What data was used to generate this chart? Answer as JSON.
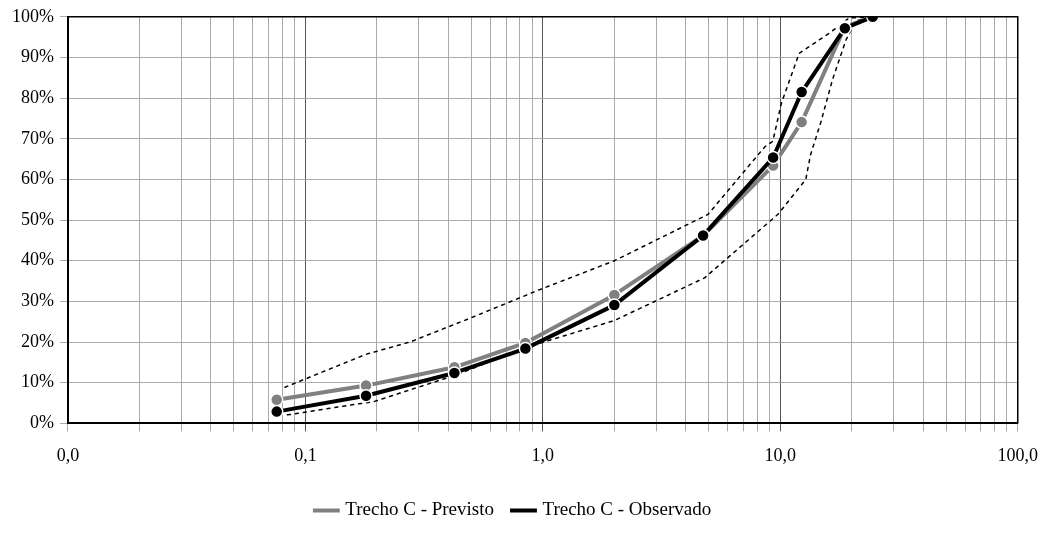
{
  "chart_data": {
    "type": "line",
    "log": "x",
    "grid": true,
    "legend": "bottom",
    "marker": "circle",
    "xlim": [
      0.01,
      100
    ],
    "ylim": [
      0,
      100
    ],
    "xticks": [
      {
        "value": 0.01,
        "label": "0,0"
      },
      {
        "value": 0.02,
        "label": null
      },
      {
        "value": 0.03,
        "label": null
      },
      {
        "value": 0.04,
        "label": null
      },
      {
        "value": 0.05,
        "label": null
      },
      {
        "value": 0.06,
        "label": null
      },
      {
        "value": 0.07,
        "label": null
      },
      {
        "value": 0.08,
        "label": null
      },
      {
        "value": 0.09,
        "label": null
      },
      {
        "value": 0.1,
        "label": "0,1"
      },
      {
        "value": 0.2,
        "label": null
      },
      {
        "value": 0.3,
        "label": null
      },
      {
        "value": 0.4,
        "label": null
      },
      {
        "value": 0.5,
        "label": null
      },
      {
        "value": 0.6,
        "label": null
      },
      {
        "value": 0.7,
        "label": null
      },
      {
        "value": 0.8,
        "label": null
      },
      {
        "value": 0.9,
        "label": null
      },
      {
        "value": 1,
        "label": "1,0"
      },
      {
        "value": 2,
        "label": null
      },
      {
        "value": 3,
        "label": null
      },
      {
        "value": 4,
        "label": null
      },
      {
        "value": 5,
        "label": null
      },
      {
        "value": 6,
        "label": null
      },
      {
        "value": 7,
        "label": null
      },
      {
        "value": 8,
        "label": null
      },
      {
        "value": 9,
        "label": null
      },
      {
        "value": 10,
        "label": "10,0"
      },
      {
        "value": 20,
        "label": null
      },
      {
        "value": 30,
        "label": null
      },
      {
        "value": 40,
        "label": null
      },
      {
        "value": 50,
        "label": null
      },
      {
        "value": 60,
        "label": null
      },
      {
        "value": 70,
        "label": null
      },
      {
        "value": 80,
        "label": null
      },
      {
        "value": 90,
        "label": null
      },
      {
        "value": 100,
        "label": "100,0"
      }
    ],
    "yticks": [
      {
        "value": 0,
        "label": "0%"
      },
      {
        "value": 10,
        "label": "10%"
      },
      {
        "value": 20,
        "label": "20%"
      },
      {
        "value": 30,
        "label": "30%"
      },
      {
        "value": 40,
        "label": "40%"
      },
      {
        "value": 50,
        "label": "50%"
      },
      {
        "value": 60,
        "label": "60%"
      },
      {
        "value": 70,
        "label": "70%"
      },
      {
        "value": 80,
        "label": "80%"
      },
      {
        "value": 90,
        "label": "90%"
      },
      {
        "value": 100,
        "label": "100%"
      }
    ],
    "series": [
      {
        "color": "#000000",
        "line_style": "dotted",
        "marker": "none",
        "x": [
          0.082,
          0.18,
          0.275,
          0.5,
          0.97,
          2.0,
          4.96,
          8.6,
          9.3,
          10.1,
          12,
          16.1,
          19.5,
          24.5
        ],
        "values": [
          8.9,
          17,
          20,
          26,
          32.9,
          40,
          51.4,
          68,
          69.4,
          78.7,
          91,
          96,
          99.7,
          100
        ]
      },
      {
        "color": "#000000",
        "line_style": "dotted",
        "marker": "none",
        "x": [
          0.084,
          0.147,
          0.195,
          0.43,
          0.85,
          2.0,
          4.8,
          9.8,
          12.8,
          13.4,
          14.8,
          16.6,
          18.9,
          20.8,
          24.5
        ],
        "values": [
          2.1,
          4.3,
          5.4,
          11.9,
          18.7,
          25.3,
          35.8,
          51.5,
          60,
          66,
          74,
          84.6,
          94.3,
          99,
          100
        ]
      },
      {
        "name": "Trecho C - Previsto",
        "color": "#808080",
        "x": [
          0.0757,
          0.18,
          0.424,
          0.844,
          2.0,
          4.73,
          9.33,
          12.3,
          18.7,
          24.5
        ],
        "values": [
          5.8,
          9.3,
          13.8,
          19.8,
          31.6,
          46.2,
          63.4,
          74.1,
          97.5,
          100
        ]
      },
      {
        "name": "Trecho C - Observado",
        "color": "#000000",
        "x": [
          0.0757,
          0.18,
          0.424,
          0.844,
          2.0,
          4.73,
          9.33,
          12.3,
          18.7,
          24.5
        ],
        "values": [
          2.9,
          6.8,
          12.4,
          18.4,
          29.1,
          46.2,
          65.4,
          81.5,
          97.2,
          100
        ]
      }
    ]
  }
}
